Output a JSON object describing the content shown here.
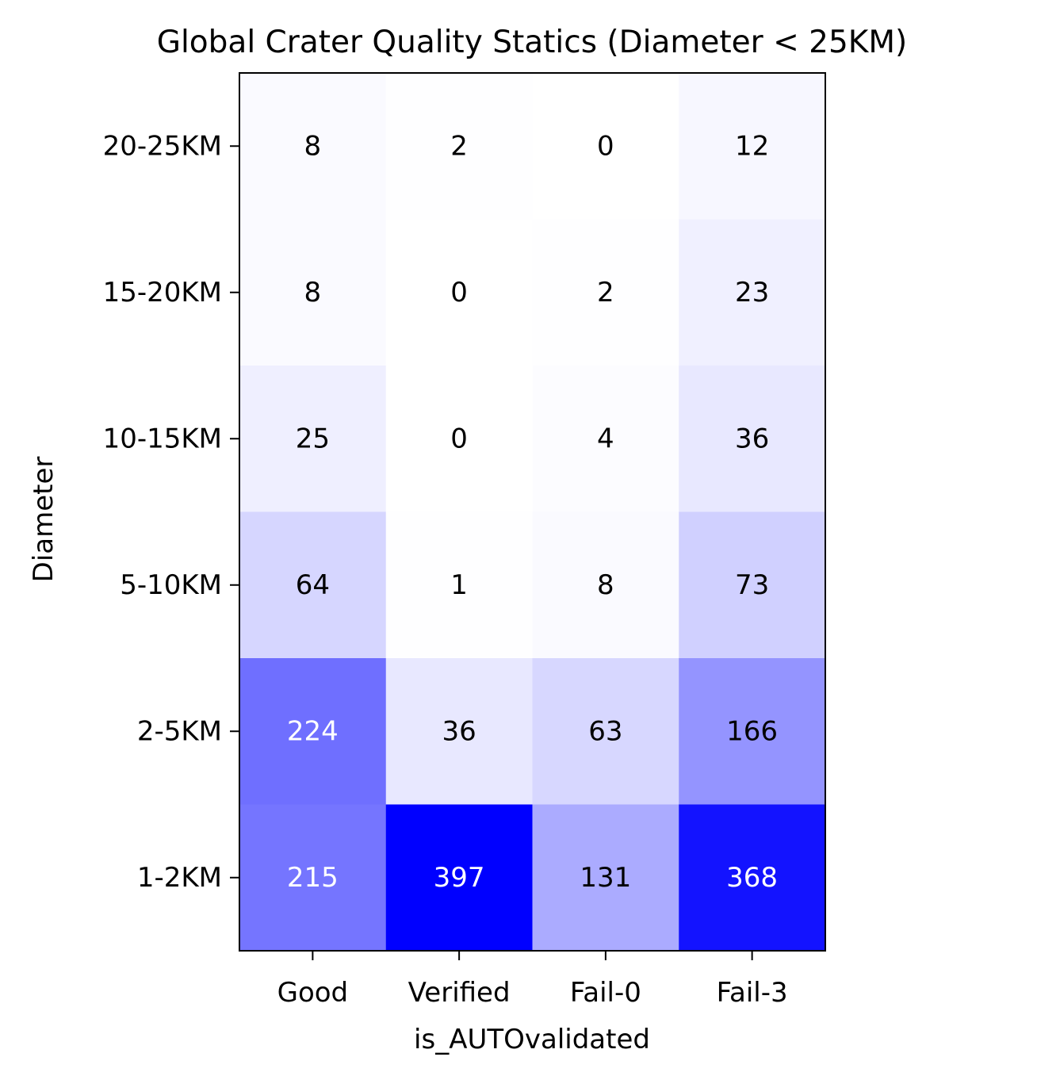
{
  "chart_data": {
    "type": "heatmap",
    "title": "Global Crater Quality Statics (Diameter < 25KM)",
    "xlabel": "is_AUTOvalidated",
    "ylabel": "Diameter",
    "x_categories": [
      "Good",
      "Verified",
      "Fail-0",
      "Fail-3"
    ],
    "y_categories": [
      "20-25KM",
      "15-20KM",
      "10-15KM",
      "5-10KM",
      "2-5KM",
      "1-2KM"
    ],
    "values": [
      [
        8,
        2,
        0,
        12
      ],
      [
        8,
        0,
        2,
        23
      ],
      [
        25,
        0,
        4,
        36
      ],
      [
        64,
        1,
        8,
        73
      ],
      [
        224,
        36,
        63,
        166
      ],
      [
        215,
        397,
        131,
        368
      ]
    ],
    "color_range": [
      0,
      397
    ],
    "colormap": {
      "low": "#ffffff",
      "high": "#0000ff"
    },
    "text_colors": {
      "dark_cell": "#ffffff",
      "light_cell": "#000000"
    },
    "grid": false,
    "legend": "none"
  }
}
